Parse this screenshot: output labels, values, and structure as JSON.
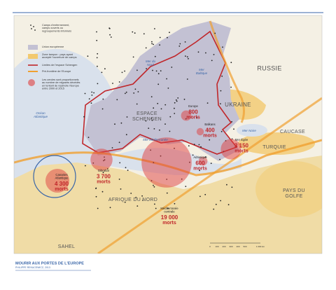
{
  "legend": [
    [
      "Camps d'enfermement,",
      "camps ouverts ou",
      "regroupements informels"
    ],
    [
      "Union européenne"
    ],
    [
      "Zone tampon : pays ayant",
      "accepté l'ouverture de camps"
    ],
    [
      "Limites de l'espace Schengen"
    ],
    [
      "Pré-frontière de l'Europe"
    ],
    [
      "Les cercles sont proportionnels",
      "au nombre de migrants décédés",
      "en tentant de rejoindre l'Europe",
      "entre 2000 et 2015"
    ]
  ],
  "regions": [
    [
      "RUSSIE"
    ],
    [
      "UKRAINE"
    ],
    [
      "CAUCASE"
    ],
    [
      "TURQUIE"
    ],
    [
      "PAYS DU",
      "GOLFE"
    ],
    [
      "AFRIQUE DU NORD"
    ],
    [
      "SAHEL"
    ],
    [
      "ESPACE",
      "SCHENGEN"
    ]
  ],
  "seas": [
    [
      "Mer du",
      "Nord"
    ],
    [
      "Mer",
      "Baltique"
    ],
    [
      "Océan",
      "Atlantique"
    ],
    [
      "Mer Méditerranée"
    ],
    [
      "Mer Noire"
    ]
  ],
  "deaths": [
    {
      "place": [
        "Europe"
      ],
      "value": 800,
      "value_label": "800",
      "unit": "morts"
    },
    {
      "place": [
        "Balkans"
      ],
      "value": 400,
      "value_label": "400",
      "unit": "morts"
    },
    {
      "place": [
        "Mer Égée"
      ],
      "value": 3150,
      "value_label": "3 150",
      "unit": "morts"
    },
    {
      "place": [
        "Gibraltar"
      ],
      "value": 3700,
      "value_label": "3 700",
      "unit": "morts"
    },
    {
      "place": [
        "Canaries",
        "Atlantique"
      ],
      "value": 4300,
      "value_label": "4 300",
      "unit": "morts"
    },
    {
      "place": [
        "Adriatique"
      ],
      "value": 600,
      "value_label": "600",
      "unit": "morts"
    },
    {
      "place": [
        "Méditerranée",
        "centrale"
      ],
      "value": 19000,
      "value_label": "19 000",
      "unit": "morts"
    }
  ],
  "scale": [
    "0",
    "100",
    "200",
    "300",
    "400",
    "500",
    "1 000 km"
  ],
  "footer": {
    "title": "MOURIR AUX PORTES DE L'EUROPE",
    "credit": "PHILIPPE REKACEWICZ, 2013"
  }
}
